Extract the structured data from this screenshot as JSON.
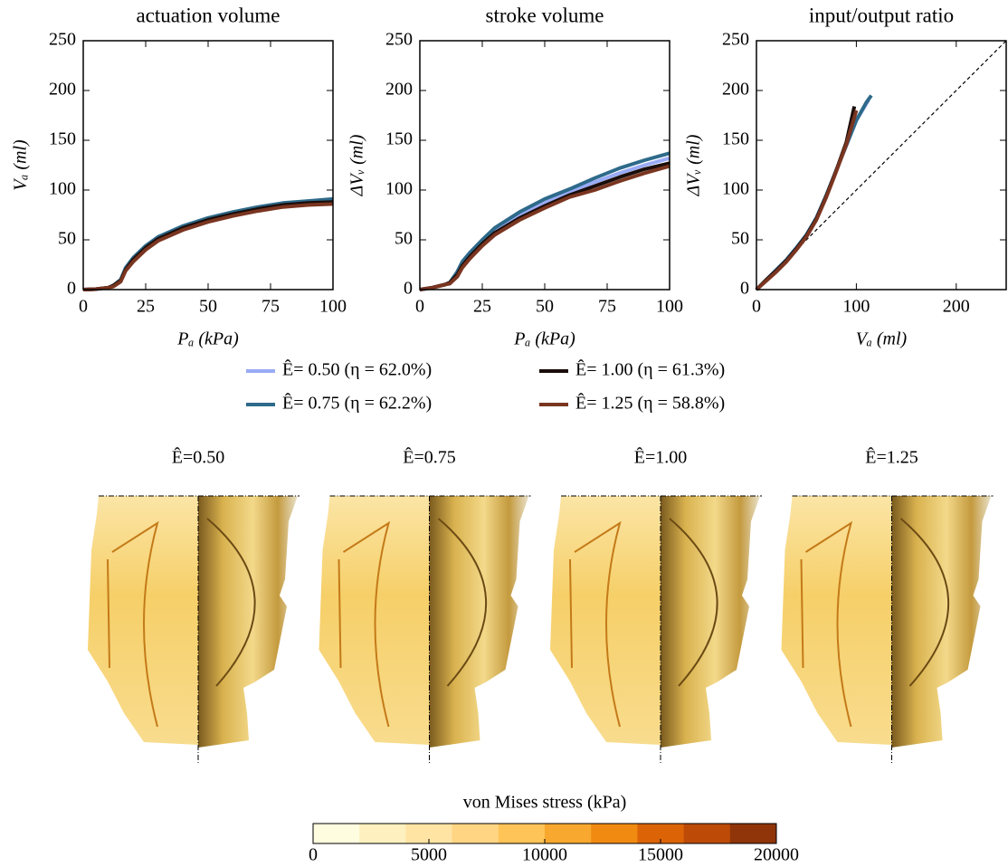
{
  "chart_data": [
    {
      "type": "line",
      "title": "actuation volume",
      "x_label": "Pₐ (kPa)",
      "y_label": "Vₐ (ml)",
      "xlim": [
        0,
        100
      ],
      "ylim": [
        0,
        250
      ],
      "xticks": [
        0,
        25,
        50,
        75,
        100
      ],
      "yticks": [
        0,
        50,
        100,
        150,
        200,
        250
      ],
      "x": [
        0,
        5,
        10,
        12,
        15,
        17,
        20,
        25,
        30,
        40,
        50,
        60,
        70,
        80,
        90,
        100
      ],
      "series": [
        {
          "name": "Ê= 0.50 (η = 62.0%)",
          "color": "#9aabf5",
          "values": [
            0,
            0.5,
            2,
            4,
            9,
            21,
            31,
            43,
            52,
            63,
            71,
            77,
            82,
            86,
            88,
            90
          ]
        },
        {
          "name": "Ê= 0.75 (η = 62.2%)",
          "color": "#2e6a8a",
          "values": [
            0,
            0.5,
            2,
            4,
            10,
            22,
            32,
            44,
            53,
            64,
            72,
            78,
            83,
            87,
            89,
            91
          ]
        },
        {
          "name": "Ê= 1.00 (η = 61.3%)",
          "color": "#1a0d0a",
          "values": [
            0,
            0.5,
            2,
            4,
            9,
            20,
            30,
            42,
            51,
            62,
            70,
            76,
            81,
            85,
            87,
            88
          ]
        },
        {
          "name": "Ê= 1.25 (η = 58.8%)",
          "color": "#7a3520",
          "values": [
            0,
            0.5,
            2,
            3,
            8,
            19,
            28,
            40,
            49,
            60,
            68,
            74,
            79,
            83,
            85,
            86
          ]
        }
      ]
    },
    {
      "type": "line",
      "title": "stroke volume",
      "x_label": "Pₐ (kPa)",
      "y_label": "ΔVᵥ (ml)",
      "xlim": [
        0,
        100
      ],
      "ylim": [
        0,
        250
      ],
      "xticks": [
        0,
        25,
        50,
        75,
        100
      ],
      "yticks": [
        0,
        50,
        100,
        150,
        200,
        250
      ],
      "x": [
        0,
        5,
        10,
        12,
        15,
        17,
        20,
        25,
        30,
        40,
        50,
        60,
        70,
        80,
        90,
        100
      ],
      "series": [
        {
          "color": "#9aabf5",
          "values": [
            0,
            2,
            5,
            7,
            16,
            26,
            35,
            48,
            59,
            75,
            87,
            98,
            108,
            117,
            125,
            132
          ]
        },
        {
          "color": "#2e6a8a",
          "values": [
            0,
            2,
            5,
            7,
            18,
            28,
            37,
            50,
            62,
            78,
            91,
            101,
            112,
            122,
            130,
            137
          ]
        },
        {
          "color": "#1a0d0a",
          "values": [
            0,
            2,
            5,
            7,
            15,
            24,
            33,
            46,
            57,
            72,
            84,
            95,
            104,
            113,
            121,
            127
          ]
        },
        {
          "color": "#7a3520",
          "values": [
            0,
            2,
            5,
            6,
            13,
            22,
            31,
            44,
            55,
            70,
            82,
            93,
            100,
            109,
            117,
            124
          ]
        }
      ]
    },
    {
      "type": "line",
      "title": "input/output ratio",
      "x_label": "Vₐ (ml)",
      "y_label": "ΔVᵥ (ml)",
      "xlim": [
        0,
        250
      ],
      "ylim": [
        0,
        250
      ],
      "xticks": [
        0,
        100,
        200
      ],
      "yticks": [
        0,
        50,
        100,
        150,
        200,
        250
      ],
      "identity_line": true,
      "series": [
        {
          "color": "#9aabf5",
          "x": [
            0,
            10,
            20,
            30,
            40,
            50,
            60,
            70,
            80,
            90,
            100,
            112
          ],
          "values": [
            0,
            10,
            20,
            30,
            42,
            55,
            72,
            95,
            120,
            145,
            170,
            190
          ]
        },
        {
          "color": "#2e6a8a",
          "x": [
            0,
            10,
            20,
            30,
            40,
            50,
            60,
            70,
            80,
            90,
            100,
            110,
            115
          ],
          "values": [
            0,
            10,
            20,
            30,
            42,
            55,
            72,
            95,
            120,
            145,
            170,
            188,
            195
          ]
        },
        {
          "color": "#1a0d0a",
          "x": [
            0,
            10,
            20,
            30,
            40,
            50,
            60,
            70,
            80,
            90,
            98
          ],
          "values": [
            0,
            10,
            19,
            29,
            41,
            54,
            71,
            94,
            120,
            148,
            184
          ]
        },
        {
          "color": "#7a3520",
          "x": [
            0,
            10,
            20,
            30,
            40,
            50,
            60,
            70,
            80,
            90,
            100
          ],
          "values": [
            0,
            9,
            18,
            28,
            40,
            53,
            70,
            93,
            119,
            146,
            180
          ]
        }
      ]
    },
    {
      "type": "colorbar",
      "title": "von Mises stress (kPa)",
      "xlim": [
        0,
        20000
      ],
      "xticks": [
        0,
        5000,
        10000,
        15000,
        20000
      ],
      "colors": [
        "#fffde0",
        "#fff0bf",
        "#ffe4a4",
        "#ffd584",
        "#fec457",
        "#f8a82e",
        "#f08a10",
        "#dc6407",
        "#bd4b07",
        "#8f3509"
      ]
    }
  ],
  "panels": [
    "Ê=0.50",
    "Ê=0.75",
    "Ê=1.00",
    "Ê=1.25"
  ]
}
